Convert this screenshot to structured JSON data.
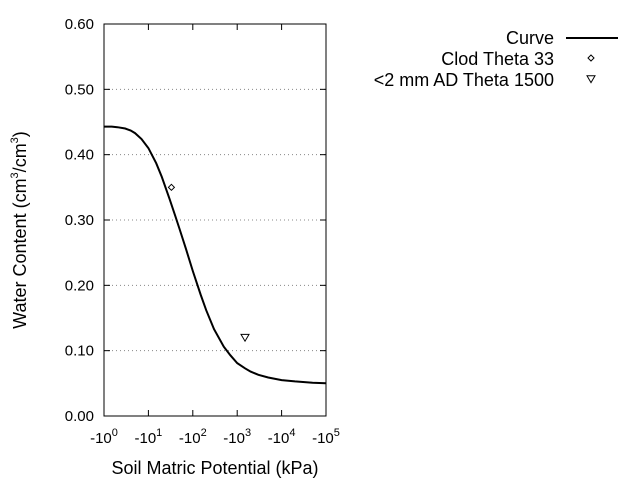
{
  "chart_data": {
    "type": "line",
    "xlabel": "Soil Matric Potential (kPa)",
    "ylabel_main": "Water Content (cm",
    "ylabel_sup1": "3",
    "ylabel_mid": "/cm",
    "ylabel_sup2": "3",
    "ylabel_end": ")",
    "x_scale": "log",
    "x_axis_sign": "negative",
    "xlim": [
      -1,
      -100000
    ],
    "ylim": [
      0.0,
      0.6
    ],
    "x_ticks": [
      -1,
      -10,
      -100,
      -1000,
      -10000,
      -100000
    ],
    "x_tick_labels": [
      {
        "base": "-10",
        "exp": "0"
      },
      {
        "base": "-10",
        "exp": "1"
      },
      {
        "base": "-10",
        "exp": "2"
      },
      {
        "base": "-10",
        "exp": "3"
      },
      {
        "base": "-10",
        "exp": "4"
      },
      {
        "base": "-10",
        "exp": "5"
      }
    ],
    "y_ticks": [
      0.0,
      0.1,
      0.2,
      0.3,
      0.4,
      0.5,
      0.6
    ],
    "y_tick_labels": [
      "0.00",
      "0.10",
      "0.20",
      "0.30",
      "0.40",
      "0.50",
      "0.60"
    ],
    "grid": "horizontal-dotted",
    "legend_position": "top-right-outside",
    "series": [
      {
        "name": "Curve",
        "kind": "line",
        "color": "#000000",
        "x": [
          -1,
          -1.5,
          -2,
          -3,
          -4,
          -5,
          -7,
          -10,
          -15,
          -20,
          -30,
          -40,
          -50,
          -70,
          -100,
          -150,
          -200,
          -300,
          -500,
          -700,
          -1000,
          -1500,
          -2000,
          -3000,
          -5000,
          -10000,
          -20000,
          -50000,
          -100000
        ],
        "y": [
          0.443,
          0.443,
          0.442,
          0.44,
          0.437,
          0.433,
          0.424,
          0.41,
          0.387,
          0.366,
          0.332,
          0.307,
          0.287,
          0.256,
          0.222,
          0.186,
          0.162,
          0.133,
          0.106,
          0.093,
          0.081,
          0.073,
          0.068,
          0.063,
          0.059,
          0.055,
          0.053,
          0.051,
          0.05
        ]
      },
      {
        "name": "Clod Theta 33",
        "kind": "scatter",
        "marker": "diamond",
        "color": "#000000",
        "x": [
          -33
        ],
        "y": [
          0.35
        ]
      },
      {
        "name": "<2 mm AD Theta 1500",
        "kind": "scatter",
        "marker": "triangle-down",
        "color": "#000000",
        "x": [
          -1500
        ],
        "y": [
          0.12
        ]
      }
    ]
  }
}
